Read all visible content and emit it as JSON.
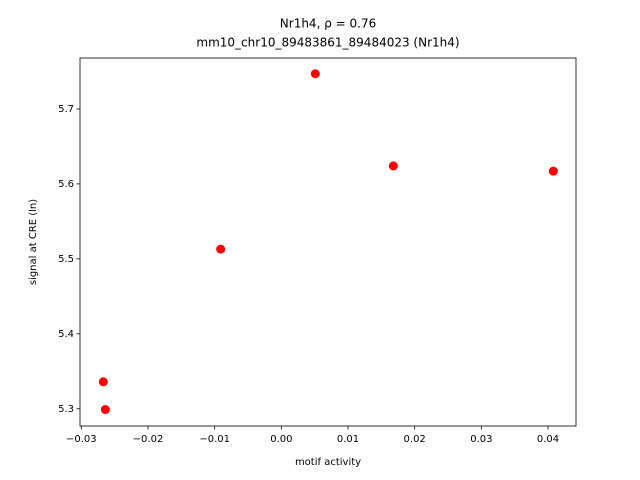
{
  "chart_data": {
    "type": "scatter",
    "title": "Nr1h4, ρ = 0.76",
    "subtitle": "mm10_chr10_89483861_89484023 (Nr1h4)",
    "x_label": "motif activity",
    "y_label": "signal at CRE (ln)",
    "series": [
      {
        "color": "#ff0000",
        "x": [
          -0.0267,
          -0.0264,
          -0.0091,
          0.0051,
          0.0168,
          0.0408
        ],
        "values": [
          5.336,
          5.299,
          5.513,
          5.747,
          5.624,
          5.617
        ]
      }
    ],
    "xlim": [
      -0.0302,
      0.0442
    ],
    "ylim": [
      5.277,
      5.768
    ],
    "xticks": [
      {
        "value": -0.03,
        "label": "−0.03"
      },
      {
        "value": -0.02,
        "label": "−0.02"
      },
      {
        "value": -0.01,
        "label": "−0.01"
      },
      {
        "value": 0,
        "label": "0.00"
      },
      0.01,
      0.02,
      0.03,
      0.04
    ],
    "yticks": [
      5.3,
      5.4,
      5.5,
      5.6,
      5.7
    ]
  }
}
